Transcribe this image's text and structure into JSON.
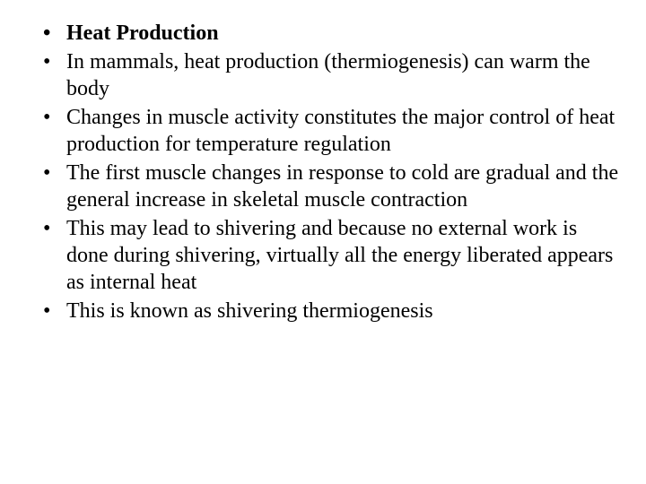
{
  "slide": {
    "bullets": [
      {
        "text": "Heat Production",
        "bold": true
      },
      {
        "text": "In mammals, heat production (thermiogenesis) can warm the body",
        "bold": false
      },
      {
        "text": "Changes in muscle activity constitutes the major control of heat production for temperature regulation",
        "bold": false
      },
      {
        "text": "The first muscle changes in response to cold are gradual and the general increase in skeletal muscle contraction",
        "bold": false
      },
      {
        "text": "This may lead to shivering and because no external work is done during shivering, virtually all the energy liberated appears as internal heat",
        "bold": false
      },
      {
        "text": "This is known as shivering thermiogenesis",
        "bold": false
      }
    ],
    "text_color": "#000000",
    "background_color": "#ffffff",
    "font_family": "Times New Roman",
    "font_size_pt": 18
  }
}
